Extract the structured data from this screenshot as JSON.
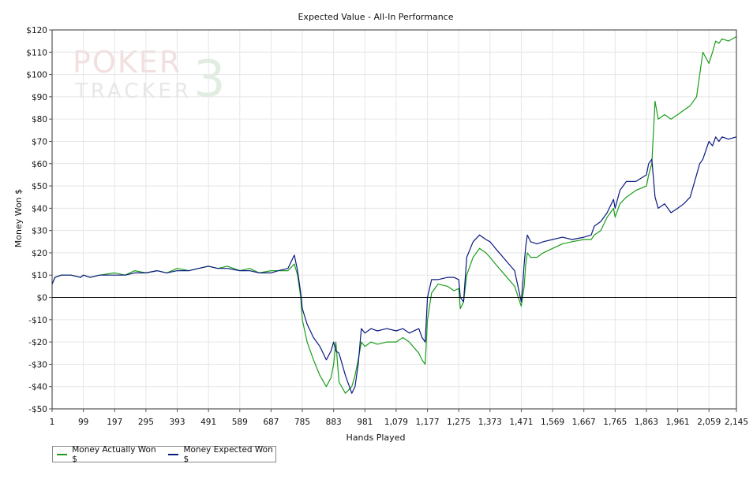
{
  "chart_data": {
    "type": "line",
    "title": "Expected Value - All-In Performance",
    "xlabel": "Hands Played",
    "ylabel": "Money Won $",
    "xlim": [
      1,
      2145
    ],
    "ylim": [
      -50,
      120
    ],
    "x_ticks": [
      1,
      99,
      197,
      295,
      393,
      491,
      589,
      687,
      785,
      883,
      981,
      1079,
      1177,
      1275,
      1373,
      1471,
      1569,
      1667,
      1765,
      1863,
      1961,
      2059,
      2145
    ],
    "x_tick_labels": [
      "1",
      "99",
      "197",
      "295",
      "393",
      "491",
      "589",
      "687",
      "785",
      "883",
      "981",
      "1,079",
      "1,177",
      "1,275",
      "1,373",
      "1,471",
      "1,569",
      "1,667",
      "1,765",
      "1,863",
      "1,961",
      "2,059",
      "2,145"
    ],
    "y_ticks": [
      -50,
      -40,
      -30,
      -20,
      -10,
      0,
      10,
      20,
      30,
      40,
      50,
      60,
      70,
      80,
      90,
      100,
      110,
      120
    ],
    "y_tick_labels": [
      "-$50",
      "-$40",
      "-$30",
      "-$20",
      "-$10",
      "$0",
      "$10",
      "$20",
      "$30",
      "$40",
      "$50",
      "$60",
      "$70",
      "$80",
      "$90",
      "$100",
      "$110",
      "$120"
    ],
    "grid": true,
    "zero_line": true,
    "legend_position": "bottom-left",
    "series": [
      {
        "name": "Money Actually Won $",
        "color": "#1a9e1a",
        "x": [
          1,
          10,
          30,
          60,
          90,
          99,
          120,
          150,
          197,
          230,
          260,
          295,
          330,
          360,
          393,
          430,
          460,
          491,
          520,
          550,
          589,
          620,
          650,
          687,
          710,
          740,
          760,
          770,
          780,
          785,
          800,
          820,
          840,
          860,
          875,
          883,
          890,
          900,
          920,
          940,
          950,
          960,
          970,
          981,
          1000,
          1020,
          1050,
          1079,
          1100,
          1120,
          1150,
          1160,
          1170,
          1177,
          1190,
          1210,
          1240,
          1260,
          1275,
          1280,
          1290,
          1300,
          1320,
          1340,
          1360,
          1373,
          1390,
          1420,
          1450,
          1471,
          1475,
          1480,
          1485,
          1490,
          1500,
          1520,
          1540,
          1569,
          1600,
          1630,
          1667,
          1690,
          1700,
          1720,
          1740,
          1760,
          1765,
          1780,
          1800,
          1830,
          1863,
          1870,
          1880,
          1890,
          1900,
          1920,
          1940,
          1961,
          1980,
          2000,
          2020,
          2030,
          2040,
          2059,
          2070,
          2080,
          2090,
          2100,
          2120,
          2145
        ],
        "y": [
          6,
          9,
          10,
          10,
          9,
          10,
          9,
          10,
          11,
          10,
          12,
          11,
          12,
          11,
          13,
          12,
          13,
          14,
          13,
          14,
          12,
          13,
          11,
          12,
          12,
          12,
          15,
          10,
          0,
          -10,
          -20,
          -28,
          -35,
          -40,
          -36,
          -30,
          -20,
          -38,
          -43,
          -40,
          -35,
          -28,
          -20,
          -22,
          -20,
          -21,
          -20,
          -20,
          -18,
          -20,
          -25,
          -28,
          -30,
          -10,
          2,
          6,
          5,
          3,
          4,
          -5,
          -2,
          10,
          18,
          22,
          20,
          18,
          15,
          10,
          5,
          -4,
          0,
          5,
          15,
          20,
          18,
          18,
          20,
          22,
          24,
          25,
          26,
          26,
          28,
          30,
          36,
          40,
          36,
          42,
          45,
          48,
          50,
          55,
          60,
          88,
          80,
          82,
          80,
          82,
          84,
          86,
          90,
          100,
          110,
          105,
          110,
          115,
          114,
          116,
          115,
          117
        ]
      },
      {
        "name": "Money Expected Won $",
        "color": "#0a1a80",
        "x": [
          1,
          10,
          30,
          60,
          90,
          99,
          120,
          150,
          197,
          230,
          260,
          295,
          330,
          360,
          393,
          430,
          460,
          491,
          520,
          550,
          589,
          620,
          650,
          687,
          710,
          740,
          760,
          770,
          780,
          785,
          800,
          820,
          840,
          860,
          875,
          883,
          890,
          900,
          920,
          940,
          950,
          960,
          970,
          981,
          1000,
          1020,
          1050,
          1079,
          1100,
          1120,
          1150,
          1160,
          1170,
          1177,
          1190,
          1210,
          1240,
          1260,
          1275,
          1280,
          1290,
          1300,
          1320,
          1340,
          1360,
          1373,
          1390,
          1420,
          1450,
          1471,
          1475,
          1480,
          1485,
          1490,
          1500,
          1520,
          1540,
          1569,
          1600,
          1630,
          1667,
          1690,
          1700,
          1720,
          1740,
          1760,
          1765,
          1780,
          1800,
          1830,
          1863,
          1870,
          1880,
          1890,
          1900,
          1920,
          1940,
          1961,
          1980,
          2000,
          2020,
          2030,
          2040,
          2059,
          2070,
          2080,
          2090,
          2100,
          2120,
          2145
        ],
        "y": [
          6,
          9,
          10,
          10,
          9,
          10,
          9,
          10,
          10,
          10,
          11,
          11,
          12,
          11,
          12,
          12,
          13,
          14,
          13,
          13,
          12,
          12,
          11,
          11,
          12,
          13,
          19,
          12,
          2,
          -5,
          -12,
          -18,
          -22,
          -28,
          -24,
          -20,
          -24,
          -25,
          -35,
          -43,
          -40,
          -30,
          -14,
          -16,
          -14,
          -15,
          -14,
          -15,
          -14,
          -16,
          -14,
          -18,
          -20,
          0,
          8,
          8,
          9,
          9,
          8,
          0,
          -2,
          18,
          25,
          28,
          26,
          25,
          22,
          17,
          12,
          -2,
          5,
          15,
          23,
          28,
          25,
          24,
          25,
          26,
          27,
          26,
          27,
          28,
          32,
          34,
          38,
          44,
          40,
          48,
          52,
          52,
          55,
          60,
          62,
          45,
          40,
          42,
          38,
          40,
          42,
          45,
          55,
          60,
          62,
          70,
          68,
          72,
          70,
          72,
          71,
          72
        ]
      }
    ]
  },
  "legend": {
    "items": [
      "Money Actually Won $",
      "Money Expected Won $"
    ]
  }
}
